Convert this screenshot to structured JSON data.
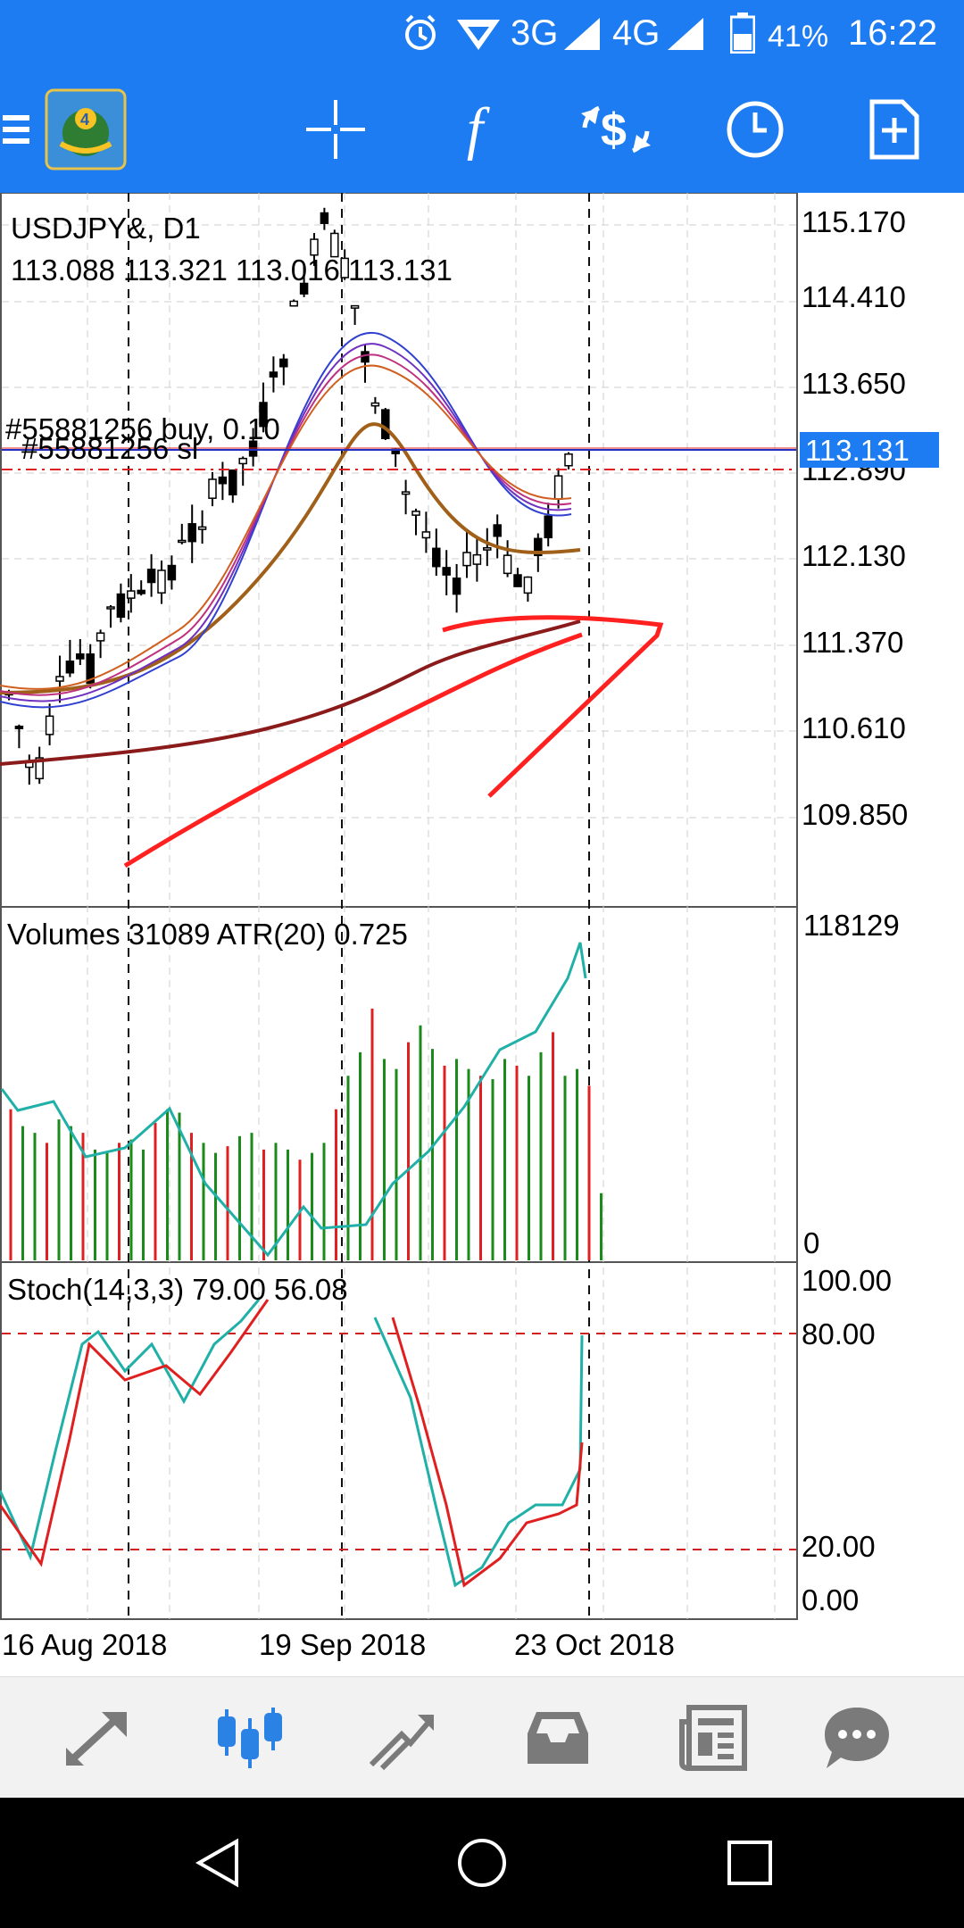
{
  "status": {
    "network_3g": "3G",
    "network_4g": "4G",
    "battery": "41%",
    "time": "16:22",
    "icons": [
      "alarm-icon",
      "wifi-hotspot-icon",
      "signal-icon",
      "battery-icon"
    ]
  },
  "toolbar": {
    "icons": [
      "menu-icon",
      "app-logo-icon",
      "crosshair-icon",
      "indicators-icon",
      "symbols-icon",
      "timeframe-icon",
      "new-order-icon"
    ],
    "indicator_glyph": "f"
  },
  "chart": {
    "symbol_title": "USDJPY&, D1",
    "ohlc": "113.088 113.321 113.016 113.131",
    "order_line_label": "#55881256 buy, 0.10",
    "sl_line_label": "#55881256 sl",
    "current_price": "113.131",
    "price_ticks": [
      "115.170",
      "114.410",
      "113.650",
      "112.890",
      "112.130",
      "111.370",
      "110.610",
      "109.850"
    ],
    "volume_label": "Volumes 31089 ATR(20) 0.725",
    "volume_max": "118129",
    "volume_min": "0",
    "stoch_label": "Stoch(14,3,3) 79.00 56.08",
    "stoch_ticks": [
      "100.00",
      "80.00",
      "20.00",
      "0.00"
    ],
    "date_labels": [
      "16 Aug 2018",
      "19 Sep 2018",
      "23 Oct 2018"
    ],
    "colors": {
      "bull_volume": "#1a8a1a",
      "bear_volume": "#e02020",
      "atr_line": "#20b0a8",
      "stoch_main": "#20b0a8",
      "stoch_signal": "#e02020",
      "drawing": "#ff2020",
      "ma_slow": "#8b1a1a",
      "ma_mid": "#a0601a",
      "price_tag": "#1e7cf2"
    }
  },
  "bottom_nav": [
    "trade-arrows-icon",
    "chart-candles-icon",
    "history-icon",
    "inbox-icon",
    "news-icon",
    "chat-icon"
  ],
  "system_nav": [
    "back-icon",
    "home-icon",
    "recents-icon"
  ]
}
